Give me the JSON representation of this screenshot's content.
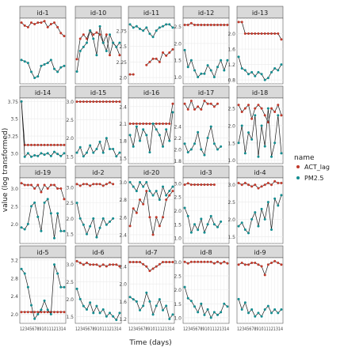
{
  "chart_data": {
    "type": "line",
    "xlabel": "Time (days)",
    "ylabel": "value (log transformed)",
    "x_tick_text": "1234567891011121314",
    "legend": {
      "title": "name",
      "position": "right",
      "entries": [
        {
          "name": "ACT_lag",
          "color": "#c0392b"
        },
        {
          "name": "PM2.5",
          "color": "#138d90"
        }
      ]
    },
    "colors": {
      "act": "#c0392b",
      "pm": "#138d90",
      "line": "#1a1a1a",
      "strip": "#d9d9d9",
      "panel_border": "#555555",
      "grid": "#ebebeb"
    },
    "x": [
      1,
      2,
      3,
      4,
      5,
      6,
      7,
      8,
      9,
      10,
      11,
      12,
      13,
      14
    ],
    "panels": [
      {
        "id": "id-1",
        "yticks": [],
        "ylim": [
          0.9,
          3.1
        ],
        "act": [
          2.95,
          2.85,
          2.8,
          2.95,
          2.9,
          2.95,
          2.95,
          3.0,
          2.8,
          2.9,
          2.95,
          2.8,
          2.6,
          2.5
        ],
        "pm": [
          1.7,
          1.65,
          1.6,
          1.3,
          1.1,
          1.15,
          1.5,
          1.55,
          1.6,
          1.7,
          1.4,
          1.3,
          1.45,
          1.5
        ]
      },
      {
        "id": "id-10",
        "yticks": [],
        "ylim": [
          1.6,
          3.2
        ],
        "act": [
          2.2,
          2.7,
          2.8,
          2.7,
          2.9,
          2.8,
          2.85,
          2.8,
          2.6,
          2.8,
          2.3,
          2.6,
          2.5,
          2.3
        ],
        "pm": [
          1.9,
          2.4,
          2.5,
          2.6,
          2.9,
          2.7,
          2.3,
          3.0,
          2.6,
          2.4,
          2.8,
          2.6,
          2.5,
          2.6
        ]
      },
      {
        "id": "id-11",
        "yticks": [
          2.0,
          2.25,
          2.5,
          2.75
        ],
        "ylim": [
          1.9,
          2.95
        ],
        "act": [
          2.05,
          2.05,
          null,
          null,
          null,
          2.2,
          2.25,
          2.3,
          2.3,
          2.25,
          2.4,
          2.35,
          2.4,
          2.45
        ],
        "pm": [
          2.85,
          2.8,
          2.82,
          2.78,
          2.75,
          2.8,
          2.7,
          2.65,
          2.75,
          2.8,
          2.82,
          2.85,
          2.85,
          2.8
        ]
      },
      {
        "id": "id-12",
        "yticks": [
          1.0,
          1.5,
          2.0,
          2.5
        ],
        "ylim": [
          0.8,
          2.75
        ],
        "act": [
          2.55,
          2.55,
          2.6,
          2.55,
          2.55,
          2.55,
          2.55,
          2.55,
          2.55,
          2.55,
          2.55,
          2.55,
          2.55,
          2.55
        ],
        "pm": [
          1.8,
          1.3,
          1.5,
          1.2,
          1.0,
          1.1,
          1.1,
          1.35,
          1.2,
          1.0,
          1.3,
          1.5,
          1.2,
          1.5
        ]
      },
      {
        "id": "id-13",
        "yticks": [
          0.8,
          1.2,
          1.6,
          2.0
        ],
        "ylim": [
          0.7,
          2.4
        ],
        "act": [
          2.3,
          2.3,
          2.0,
          2.0,
          2.0,
          2.0,
          2.0,
          2.0,
          2.0,
          2.0,
          2.0,
          2.0,
          2.0,
          1.85
        ],
        "pm": [
          1.4,
          1.1,
          1.05,
          0.95,
          1.0,
          0.9,
          1.0,
          0.95,
          0.8,
          0.85,
          1.0,
          1.1,
          1.05,
          1.2
        ]
      },
      {
        "id": "id-14",
        "yticks": [
          3.0,
          3.25,
          3.5,
          3.75
        ],
        "ylim": [
          2.85,
          3.8
        ],
        "act": [
          3.75,
          3.12,
          3.12,
          3.12,
          3.12,
          3.12,
          3.12,
          3.12,
          3.12,
          3.12,
          3.12,
          3.12,
          3.12,
          3.12
        ],
        "pm": [
          3.75,
          2.95,
          3.0,
          2.95,
          2.97,
          2.96,
          3.0,
          2.98,
          3.0,
          2.96,
          3.02,
          2.99,
          2.96,
          3.0
        ]
      },
      {
        "id": "id-15",
        "yticks": [
          1.5,
          2.0,
          2.5,
          3.0
        ],
        "ylim": [
          1.3,
          3.1
        ],
        "act": [
          3.0,
          3.0,
          3.0,
          3.0,
          3.0,
          3.0,
          3.0,
          3.0,
          3.0,
          3.0,
          3.0,
          3.0,
          3.0,
          3.0
        ],
        "pm": [
          1.6,
          1.75,
          1.5,
          1.6,
          1.8,
          1.6,
          1.7,
          1.9,
          1.6,
          2.0,
          1.7,
          1.7,
          1.5,
          1.6
        ]
      },
      {
        "id": "id-16",
        "yticks": [
          1.5,
          1.8,
          2.1,
          2.4
        ],
        "ylim": [
          1.4,
          2.55
        ],
        "act": [
          2.1,
          2.1,
          2.1,
          2.1,
          2.1,
          2.1,
          2.1,
          2.1,
          2.1,
          2.1,
          2.1,
          2.1,
          2.1,
          2.45
        ],
        "pm": [
          1.9,
          1.7,
          2.05,
          1.8,
          2.0,
          1.9,
          1.6,
          2.1,
          2.0,
          1.9,
          1.7,
          2.0,
          1.8,
          2.3
        ]
      },
      {
        "id": "id-17",
        "yticks": [
          1.8,
          2.0,
          2.2,
          2.4
        ],
        "ylim": [
          1.75,
          2.9
        ],
        "act": [
          2.8,
          2.7,
          2.85,
          2.7,
          2.75,
          2.7,
          2.85,
          2.8,
          2.8,
          2.75,
          2.8,
          null,
          null,
          null
        ],
        "pm": [
          2.1,
          1.95,
          2.0,
          2.1,
          2.3,
          2.0,
          1.9,
          2.2,
          2.4,
          2.1,
          2.0,
          2.05,
          null,
          null
        ]
      },
      {
        "id": "id-18",
        "yticks": [
          1.0,
          1.5,
          2.0,
          2.5
        ],
        "ylim": [
          0.9,
          2.8
        ],
        "act": [
          2.6,
          2.4,
          2.5,
          2.6,
          2.2,
          2.5,
          2.6,
          2.5,
          2.3,
          2.1,
          2.5,
          2.4,
          2.6,
          2.3
        ],
        "pm": [
          1.5,
          2.0,
          1.2,
          1.8,
          1.6,
          2.3,
          1.1,
          2.0,
          1.4,
          2.5,
          1.1,
          1.5,
          2.3,
          1.2
        ]
      },
      {
        "id": "id-19",
        "yticks": [
          2.0,
          2.5,
          3.0
        ],
        "ylim": [
          1.45,
          3.3
        ],
        "act": [
          3.15,
          3.1,
          3.1,
          3.1,
          3.0,
          3.1,
          2.9,
          3.1,
          3.0,
          3.1,
          3.1,
          3.0,
          3.0,
          2.7
        ],
        "pm": [
          1.9,
          1.85,
          2.0,
          2.5,
          2.6,
          2.2,
          1.8,
          2.6,
          2.7,
          2.3,
          1.6,
          2.3,
          1.8,
          1.8
        ]
      },
      {
        "id": "id-2",
        "yticks": [
          1.5,
          2.0,
          2.5,
          3.0
        ],
        "ylim": [
          1.2,
          3.3
        ],
        "act": [
          3.1,
          3.05,
          3.1,
          3.1,
          3.05,
          3.1,
          3.1,
          3.1,
          3.05,
          3.1,
          3.15,
          3.1,
          null,
          null
        ],
        "pm": [
          2.5,
          2.0,
          1.8,
          1.5,
          1.75,
          2.0,
          1.4,
          1.7,
          2.0,
          1.8,
          1.9,
          2.0,
          null,
          null
        ]
      },
      {
        "id": "id-20",
        "yticks": [
          2.4,
          2.6,
          2.8,
          3.0
        ],
        "ylim": [
          2.3,
          3.05
        ],
        "act": [
          2.5,
          2.7,
          2.65,
          2.8,
          2.75,
          2.9,
          2.6,
          2.4,
          2.6,
          2.5,
          2.6,
          2.8,
          2.85,
          2.9
        ],
        "pm": [
          3.0,
          2.95,
          2.9,
          3.0,
          2.95,
          3.0,
          2.9,
          2.85,
          2.9,
          2.8,
          2.95,
          2.85,
          2.9,
          2.95
        ]
      },
      {
        "id": "id-3",
        "yticks": [
          1.0,
          1.5,
          2.0,
          2.5,
          3.0
        ],
        "ylim": [
          0.8,
          3.2
        ],
        "act": [
          2.95,
          3.0,
          2.95,
          2.95,
          2.95,
          2.95,
          2.95,
          2.95,
          2.95,
          2.95,
          null,
          null,
          null,
          null
        ],
        "pm": [
          2.1,
          1.8,
          1.2,
          1.5,
          1.3,
          1.7,
          1.2,
          1.5,
          1.8,
          1.5,
          1.4,
          1.6,
          null,
          null
        ]
      },
      {
        "id": "id-4",
        "yticks": [
          1.5,
          2.0,
          2.5,
          3.0
        ],
        "ylim": [
          1.3,
          3.2
        ],
        "act": [
          3.05,
          3.0,
          3.05,
          3.0,
          2.95,
          3.0,
          2.9,
          2.95,
          3.0,
          3.05,
          3.0,
          3.1,
          3.05,
          3.05
        ],
        "pm": [
          1.8,
          1.9,
          1.7,
          1.6,
          2.0,
          2.2,
          1.8,
          2.3,
          2.0,
          2.5,
          1.7,
          2.6,
          2.4,
          2.7
        ]
      },
      {
        "id": "id-5",
        "yticks": [
          2.0,
          2.4,
          2.8,
          3.2
        ],
        "ylim": [
          1.8,
          3.25
        ],
        "act": [
          2.05,
          2.05,
          2.05,
          2.05,
          2.05,
          2.05,
          2.05,
          2.05,
          2.05,
          2.05,
          2.05,
          2.05,
          2.05,
          2.05
        ],
        "pm": [
          3.0,
          2.9,
          2.6,
          2.2,
          1.9,
          2.0,
          2.1,
          2.3,
          2.1,
          2.0,
          3.1,
          2.9,
          2.6,
          2.6
        ]
      },
      {
        "id": "id-6",
        "yticks": [
          1.5,
          2.0,
          2.5,
          3.0
        ],
        "ylim": [
          1.3,
          3.2
        ],
        "act": [
          3.1,
          3.05,
          3.0,
          3.05,
          3.0,
          3.0,
          3.0,
          2.95,
          3.0,
          2.95,
          3.0,
          3.0,
          3.0,
          2.95
        ],
        "pm": [
          2.3,
          2.0,
          1.8,
          1.7,
          1.9,
          1.6,
          1.8,
          1.6,
          1.7,
          1.5,
          1.6,
          1.5,
          1.4,
          1.6
        ]
      },
      {
        "id": "id-7",
        "yticks": [
          1.2,
          1.6,
          2.0,
          2.4
        ],
        "ylim": [
          1.1,
          2.6
        ],
        "act": [
          2.5,
          2.5,
          2.5,
          2.5,
          2.45,
          2.4,
          2.3,
          2.35,
          2.4,
          2.45,
          2.5,
          2.5,
          2.5,
          2.5
        ],
        "pm": [
          1.7,
          1.65,
          1.6,
          1.4,
          1.5,
          1.8,
          1.6,
          1.3,
          1.5,
          1.65,
          1.4,
          1.5,
          1.2,
          1.3
        ]
      },
      {
        "id": "id-8",
        "yticks": [
          1.0,
          1.5,
          2.0,
          2.5,
          3.0
        ],
        "ylim": [
          0.8,
          3.15
        ],
        "act": [
          3.0,
          2.95,
          3.0,
          3.0,
          3.0,
          3.0,
          3.0,
          3.0,
          3.0,
          2.95,
          3.0,
          2.95,
          3.0,
          2.95
        ],
        "pm": [
          2.1,
          1.7,
          1.6,
          1.4,
          1.2,
          1.5,
          1.1,
          1.3,
          1.0,
          1.2,
          1.1,
          1.2,
          1.5,
          1.4
        ]
      },
      {
        "id": "id-9",
        "yticks": [],
        "ylim": [
          1.2,
          3.1
        ],
        "act": [
          2.9,
          2.95,
          2.9,
          2.9,
          2.95,
          2.95,
          2.9,
          2.85,
          2.6,
          2.9,
          2.95,
          3.0,
          2.95,
          2.9
        ],
        "pm": [
          1.9,
          1.6,
          1.8,
          1.5,
          1.6,
          1.4,
          1.5,
          1.4,
          1.6,
          1.7,
          1.5,
          1.6,
          1.5,
          1.6
        ]
      }
    ]
  }
}
